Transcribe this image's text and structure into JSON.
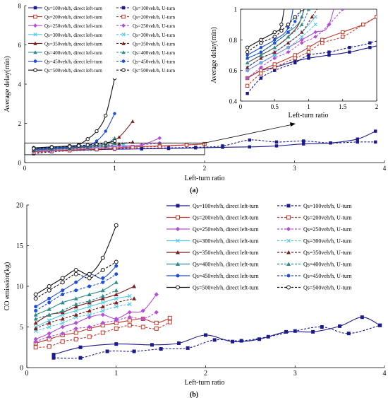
{
  "chart_data": [
    {
      "type": "line",
      "panel_label": "(a)",
      "xlabel": "Left-turn ratio",
      "ylabel": "Average delay(min)",
      "xlim": [
        0,
        4
      ],
      "ylim": [
        0,
        8
      ],
      "xticks": [
        "0",
        "1",
        "2",
        "3",
        "4"
      ],
      "yticks": [
        "0",
        "2",
        "4",
        "6",
        "8"
      ],
      "legend_placement": "top-left",
      "series": [
        {
          "name": "Qs=100veh/h, direct left-turn",
          "color": "#1a1a8c",
          "dash": false,
          "marker": "square",
          "x": [
            0.1,
            0.3,
            0.5,
            0.8,
            1.0,
            1.3,
            1.6,
            1.9,
            2.2,
            2.5,
            2.8,
            3.1,
            3.4,
            3.7,
            3.9
          ],
          "y": [
            0.55,
            0.6,
            0.62,
            0.66,
            0.68,
            0.7,
            0.72,
            0.75,
            0.78,
            0.8,
            0.85,
            0.95,
            1.0,
            1.2,
            1.6
          ]
        },
        {
          "name": "Qs=100veh/h, U-turn",
          "color": "#1a1a8c",
          "dash": true,
          "marker": "square",
          "x": [
            0.1,
            0.3,
            0.5,
            0.8,
            1.0,
            1.3,
            1.6,
            1.9,
            2.2,
            2.5,
            2.8,
            3.1,
            3.4,
            3.7,
            3.9
          ],
          "y": [
            0.45,
            0.55,
            0.6,
            0.65,
            0.7,
            0.72,
            0.75,
            0.78,
            0.85,
            1.15,
            1.05,
            1.1,
            1.0,
            1.05,
            1.05
          ]
        },
        {
          "name": "Qs=200veh/h, direct left-turn",
          "color": "#c0392b",
          "dash": false,
          "marker": "square-open",
          "x": [
            0.1,
            0.3,
            0.5,
            0.8,
            1.0,
            1.2,
            1.5,
            1.8,
            2.0
          ],
          "y": [
            0.55,
            0.6,
            0.64,
            0.7,
            0.75,
            0.8,
            0.85,
            0.9,
            0.95
          ]
        },
        {
          "name": "Qs=200veh/h, U-turn",
          "color": "#c0392b",
          "dash": true,
          "marker": "square-open",
          "x": [
            0.1,
            0.3,
            0.5,
            0.8,
            1.0,
            1.2,
            1.5,
            1.8,
            2.0
          ],
          "y": [
            0.5,
            0.58,
            0.62,
            0.68,
            0.72,
            0.78,
            0.82,
            0.9,
            0.95
          ]
        },
        {
          "name": "Qs=250veh/h, direct left-turn",
          "color": "#b44fd8",
          "dash": false,
          "marker": "diamond",
          "x": [
            0.1,
            0.3,
            0.5,
            0.7,
            0.9,
            1.1,
            1.3,
            1.5
          ],
          "y": [
            0.6,
            0.65,
            0.7,
            0.75,
            0.8,
            0.85,
            0.9,
            1.25
          ]
        },
        {
          "name": "Qs=250veh/h, U-turn",
          "color": "#b44fd8",
          "dash": true,
          "marker": "diamond",
          "x": [
            0.1,
            0.3,
            0.5,
            0.7,
            0.9,
            1.1,
            1.3,
            1.5
          ],
          "y": [
            0.55,
            0.62,
            0.68,
            0.72,
            0.78,
            0.82,
            0.9,
            1.0
          ]
        },
        {
          "name": "Qs=300veh/h, direct left-turn",
          "color": "#56c8e8",
          "dash": false,
          "marker": "x",
          "x": [
            0.1,
            0.3,
            0.5,
            0.7,
            0.9,
            1.1
          ],
          "y": [
            0.62,
            0.68,
            0.72,
            0.78,
            0.85,
            0.95
          ]
        },
        {
          "name": "Qs=300veh/h, U-turn",
          "color": "#56c8e8",
          "dash": true,
          "marker": "x",
          "x": [
            0.1,
            0.3,
            0.5,
            0.7,
            0.9,
            1.1
          ],
          "y": [
            0.6,
            0.65,
            0.7,
            0.75,
            0.82,
            0.9
          ]
        },
        {
          "name": "Qs=350veh/h, direct left-turn",
          "color": "#7b1f1f",
          "dash": false,
          "marker": "triangle",
          "x": [
            0.1,
            0.3,
            0.5,
            0.7,
            0.9,
            1.05,
            1.2
          ],
          "y": [
            0.65,
            0.7,
            0.75,
            0.82,
            0.95,
            1.3,
            2.1
          ]
        },
        {
          "name": "Qs=350veh/h, U-turn",
          "color": "#7b1f1f",
          "dash": true,
          "marker": "triangle",
          "x": [
            0.1,
            0.3,
            0.5,
            0.7,
            0.9,
            1.05,
            1.2
          ],
          "y": [
            0.62,
            0.68,
            0.72,
            0.78,
            0.85,
            0.95,
            1.05
          ]
        },
        {
          "name": "Qs=400veh/h, direct left-turn",
          "color": "#2e8b8b",
          "dash": false,
          "marker": "triangle",
          "x": [
            0.1,
            0.3,
            0.5,
            0.7,
            0.9,
            1.0
          ],
          "y": [
            0.68,
            0.72,
            0.78,
            0.85,
            0.95,
            1.25
          ]
        },
        {
          "name": "Qs=400veh/h, U-turn",
          "color": "#2e8b8b",
          "dash": true,
          "marker": "triangle",
          "x": [
            0.1,
            0.3,
            0.5,
            0.7,
            0.9,
            1.0
          ],
          "y": [
            0.65,
            0.7,
            0.75,
            0.82,
            0.9,
            1.0
          ]
        },
        {
          "name": "Qs=450veh/h, direct left-turn",
          "color": "#1f4fd8",
          "dash": false,
          "marker": "circle",
          "x": [
            0.1,
            0.3,
            0.5,
            0.7,
            0.8,
            0.9,
            1.0
          ],
          "y": [
            0.7,
            0.75,
            0.8,
            0.88,
            1.1,
            1.6,
            2.5
          ]
        },
        {
          "name": "Qs=450veh/h, U-turn",
          "color": "#1f4fd8",
          "dash": true,
          "marker": "circle",
          "x": [
            0.1,
            0.3,
            0.5,
            0.7,
            0.8,
            0.9,
            1.0
          ],
          "y": [
            0.68,
            0.72,
            0.78,
            0.85,
            0.92,
            1.0,
            1.1
          ]
        },
        {
          "name": "Qs=500veh/h, direct left-turn",
          "color": "#111111",
          "dash": false,
          "marker": "circle-open",
          "x": [
            0.1,
            0.3,
            0.5,
            0.6,
            0.7,
            0.8,
            0.9,
            1.0
          ],
          "y": [
            0.75,
            0.8,
            0.85,
            0.9,
            1.2,
            1.6,
            2.4,
            4.3
          ]
        },
        {
          "name": "Qs=500veh/h, U-turn",
          "color": "#111111",
          "dash": true,
          "marker": "circle-open",
          "x": [
            0.1,
            0.3,
            0.5,
            0.6,
            0.7,
            0.8,
            0.9,
            1.0
          ],
          "y": [
            0.72,
            0.78,
            0.82,
            0.86,
            0.9,
            0.95,
            1.0,
            1.1
          ]
        }
      ],
      "inset": {
        "xlabel": "Left-turn ratio",
        "ylabel": "Average delay(min)",
        "xlim": [
          0,
          2
        ],
        "ylim": [
          0.4,
          1
        ],
        "xticks": [
          "0",
          "0.5",
          "1",
          "1.5",
          "2"
        ],
        "yticks": [
          "0.4",
          "0.6",
          "0.8",
          "1"
        ]
      }
    },
    {
      "type": "line",
      "panel_label": "(b)",
      "xlabel": "Left-turn ratio",
      "ylabel": "CO emission(kg)",
      "xlim": [
        0,
        4
      ],
      "ylim": [
        0,
        20
      ],
      "xticks": [
        "0",
        "1",
        "2",
        "3",
        "4"
      ],
      "yticks": [
        "0",
        "5",
        "10",
        "15",
        "20"
      ],
      "legend_placement": "top-right",
      "series": [
        {
          "name": "Qs=100veh/h, direct left-turn",
          "color": "#1a1a8c",
          "dash": false,
          "marker": "square",
          "x": [
            0.3,
            0.6,
            1.0,
            1.4,
            1.7,
            2.0,
            2.3,
            2.6,
            2.9,
            3.2,
            3.5,
            3.75,
            3.95
          ],
          "y": [
            1.6,
            2.5,
            2.9,
            2.8,
            3.0,
            4.0,
            3.2,
            3.5,
            4.4,
            4.4,
            5.1,
            6.2,
            5.2
          ]
        },
        {
          "name": "Qs=100veh/h, U-turn",
          "color": "#1a1a8c",
          "dash": true,
          "marker": "square",
          "x": [
            0.3,
            0.6,
            0.9,
            1.2,
            1.5,
            1.8,
            2.1,
            2.4,
            2.7,
            3.0,
            3.3,
            3.6,
            3.95
          ],
          "y": [
            1.2,
            1.2,
            2.0,
            2.0,
            2.3,
            2.4,
            3.4,
            3.3,
            3.8,
            4.5,
            5.0,
            4.2,
            5.2
          ]
        },
        {
          "name": "Qs=200veh/h, direct left-turn",
          "color": "#c0392b",
          "dash": false,
          "marker": "square-open",
          "x": [
            0.1,
            0.25,
            0.4,
            0.55,
            0.7,
            0.85,
            1.0,
            1.15,
            1.3,
            1.45,
            1.6
          ],
          "y": [
            3.0,
            3.5,
            4.0,
            4.3,
            4.8,
            5.2,
            5.5,
            5.8,
            6.0,
            5.5,
            6.1
          ]
        },
        {
          "name": "Qs=200veh/h, U-turn",
          "color": "#c0392b",
          "dash": true,
          "marker": "square-open",
          "x": [
            0.1,
            0.25,
            0.4,
            0.55,
            0.7,
            0.85,
            1.0,
            1.15,
            1.3,
            1.45,
            1.6
          ],
          "y": [
            2.5,
            2.6,
            3.2,
            3.5,
            3.8,
            4.3,
            4.8,
            5.2,
            5.0,
            4.8,
            5.6
          ]
        },
        {
          "name": "Qs=250veh/h, direct left-turn",
          "color": "#b44fd8",
          "dash": false,
          "marker": "diamond",
          "x": [
            0.1,
            0.25,
            0.4,
            0.55,
            0.7,
            0.85,
            1.0,
            1.15,
            1.3,
            1.45
          ],
          "y": [
            3.5,
            4.2,
            5.0,
            5.5,
            6.2,
            6.5,
            6.0,
            6.8,
            7.0,
            9.0
          ]
        },
        {
          "name": "Qs=250veh/h, U-turn",
          "color": "#b44fd8",
          "dash": true,
          "marker": "diamond",
          "x": [
            0.1,
            0.25,
            0.4,
            0.55,
            0.7,
            0.85,
            1.0,
            1.15,
            1.3,
            1.45
          ],
          "y": [
            3.2,
            3.8,
            4.2,
            4.8,
            5.0,
            5.5,
            5.8,
            6.2,
            6.0,
            6.8
          ]
        },
        {
          "name": "Qs=300veh/h, direct left-turn",
          "color": "#56c8e8",
          "dash": false,
          "marker": "x",
          "x": [
            0.1,
            0.25,
            0.4,
            0.55,
            0.7,
            0.85,
            1.0,
            1.15
          ],
          "y": [
            5.0,
            5.8,
            6.5,
            7.0,
            7.5,
            8.0,
            8.5,
            8.8
          ]
        },
        {
          "name": "Qs=300veh/h, U-turn",
          "color": "#56c8e8",
          "dash": true,
          "marker": "x",
          "x": [
            0.1,
            0.25,
            0.4,
            0.55,
            0.7,
            0.85,
            1.0,
            1.15
          ],
          "y": [
            4.5,
            5.0,
            5.5,
            6.2,
            6.5,
            7.0,
            7.5,
            7.8
          ]
        },
        {
          "name": "Qs=350veh/h, direct left-turn",
          "color": "#7b1f1f",
          "dash": false,
          "marker": "triangle",
          "x": [
            0.1,
            0.25,
            0.4,
            0.55,
            0.7,
            0.85,
            1.0,
            1.2
          ],
          "y": [
            5.5,
            6.5,
            6.8,
            7.5,
            8.0,
            8.5,
            9.0,
            10.0
          ]
        },
        {
          "name": "Qs=350veh/h, U-turn",
          "color": "#7b1f1f",
          "dash": true,
          "marker": "triangle",
          "x": [
            0.1,
            0.25,
            0.4,
            0.55,
            0.7,
            0.85,
            1.0,
            1.2
          ],
          "y": [
            4.8,
            5.5,
            6.0,
            6.5,
            7.0,
            7.5,
            8.0,
            8.5
          ]
        },
        {
          "name": "Qs=400veh/h, direct left-turn",
          "color": "#2e8b8b",
          "dash": false,
          "marker": "triangle",
          "x": [
            0.1,
            0.25,
            0.4,
            0.55,
            0.7,
            0.85,
            1.0
          ],
          "y": [
            6.5,
            7.2,
            8.0,
            8.5,
            9.0,
            9.5,
            10.5
          ]
        },
        {
          "name": "Qs=400veh/h, U-turn",
          "color": "#2e8b8b",
          "dash": true,
          "marker": "triangle",
          "x": [
            0.1,
            0.25,
            0.4,
            0.55,
            0.7,
            0.85,
            1.0
          ],
          "y": [
            6.0,
            6.5,
            7.0,
            7.8,
            8.2,
            8.8,
            9.5
          ]
        },
        {
          "name": "Qs=450veh/h, direct left-turn",
          "color": "#1f4fd8",
          "dash": false,
          "marker": "circle",
          "x": [
            0.1,
            0.25,
            0.4,
            0.55,
            0.7,
            0.85,
            1.0
          ],
          "y": [
            7.5,
            8.5,
            9.5,
            10.5,
            11.5,
            11.0,
            12.5
          ]
        },
        {
          "name": "Qs=450veh/h, U-turn",
          "color": "#1f4fd8",
          "dash": true,
          "marker": "circle",
          "x": [
            0.1,
            0.25,
            0.4,
            0.55,
            0.7,
            0.85,
            1.0
          ],
          "y": [
            7.0,
            8.0,
            9.0,
            9.5,
            10.0,
            10.5,
            11.5
          ]
        },
        {
          "name": "Qs=500veh/h, direct left-turn",
          "color": "#111111",
          "dash": false,
          "marker": "circle-open",
          "x": [
            0.1,
            0.25,
            0.4,
            0.55,
            0.7,
            0.85,
            1.0
          ],
          "y": [
            9.0,
            10.0,
            11.0,
            12.0,
            11.5,
            13.5,
            17.5
          ]
        },
        {
          "name": "Qs=500veh/h, U-turn",
          "color": "#111111",
          "dash": true,
          "marker": "circle-open",
          "x": [
            0.1,
            0.25,
            0.4,
            0.55,
            0.7,
            0.85,
            1.0
          ],
          "y": [
            8.5,
            9.5,
            10.5,
            11.5,
            11.0,
            12.0,
            13.0
          ]
        }
      ]
    }
  ]
}
